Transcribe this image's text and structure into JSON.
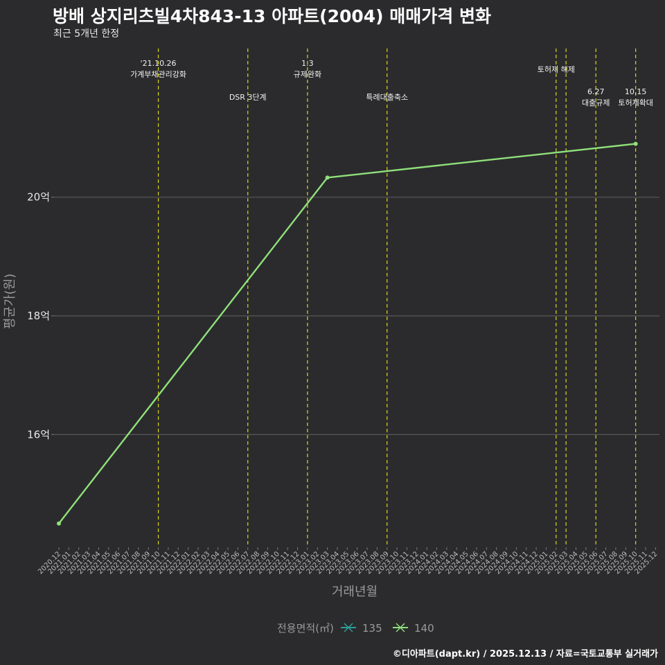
{
  "chart_data": {
    "type": "line",
    "title": "방배 상지리츠빌4차843-13 아파트(2004) 매매가격 변화",
    "subtitle": "최근 5개년 한정",
    "xlabel": "거래년월",
    "ylabel": "평균가(원)",
    "ylim": [
      14.1,
      22.6
    ],
    "y_ticks": [
      16,
      18,
      20
    ],
    "y_tick_labels": [
      "16억",
      "18억",
      "20억"
    ],
    "x_categories": [
      "2020.12",
      "2021.01",
      "2021.02",
      "2021.03",
      "2021.04",
      "2021.05",
      "2021.06",
      "2021.07",
      "2021.08",
      "2021.09",
      "2021.10",
      "2021.11",
      "2021.12",
      "2022.01",
      "2022.02",
      "2022.03",
      "2022.04",
      "2022.05",
      "2022.06",
      "2022.07",
      "2022.08",
      "2022.09",
      "2022.10",
      "2022.11",
      "2022.12",
      "2023.01",
      "2023.02",
      "2023.03",
      "2023.04",
      "2023.05",
      "2023.06",
      "2023.07",
      "2023.08",
      "2023.09",
      "2023.10",
      "2023.11",
      "2023.12",
      "2024.01",
      "2024.02",
      "2024.03",
      "2024.04",
      "2024.05",
      "2024.06",
      "2024.07",
      "2024.08",
      "2024.09",
      "2024.10",
      "2024.11",
      "2024.12",
      "2025.01",
      "2025.02",
      "2025.03",
      "2025.04",
      "2025.05",
      "2025.06",
      "2025.07",
      "2025.08",
      "2025.09",
      "2025.10",
      "2025.11",
      "2025.12"
    ],
    "series": [
      {
        "name": "135",
        "color": "#2aa198",
        "points": []
      },
      {
        "name": "140",
        "color": "#90e07a",
        "points": [
          {
            "x": "2020.12",
            "y": 14.5
          },
          {
            "x": "2023.03",
            "y": 20.33
          },
          {
            "x": "2025.10",
            "y": 20.9
          }
        ]
      }
    ],
    "events": [
      {
        "x": 10.0,
        "row": 0,
        "label": "'21.10.26\n가계부채관리강화"
      },
      {
        "x": 19.0,
        "row": 1,
        "label": "DSR 3단계"
      },
      {
        "x": 25.0,
        "row": 0,
        "label": "1.3\n규제완화"
      },
      {
        "x": 33.0,
        "row": 1,
        "label": "특례대출축소"
      },
      {
        "x": 50.0,
        "row": 0,
        "label": "토허제 해제"
      },
      {
        "x": 51.0,
        "row": -1,
        "label": ""
      },
      {
        "x": 54.0,
        "row": 1,
        "label": "6.27\n대출규제"
      },
      {
        "x": 58.0,
        "row": 1,
        "label": "10.15\n토허제확대"
      }
    ],
    "event_line_color": "#d8d81a",
    "grid": true,
    "legend_position": "bottom",
    "legend_title": "전용면적(㎡)"
  },
  "caption": "©디아파트(dapt.kr) / 2025.12.13 / 자료=국토교통부 실거래가",
  "colors": {
    "background": "#2b2b2d",
    "gridline": "#5a5a5a"
  }
}
